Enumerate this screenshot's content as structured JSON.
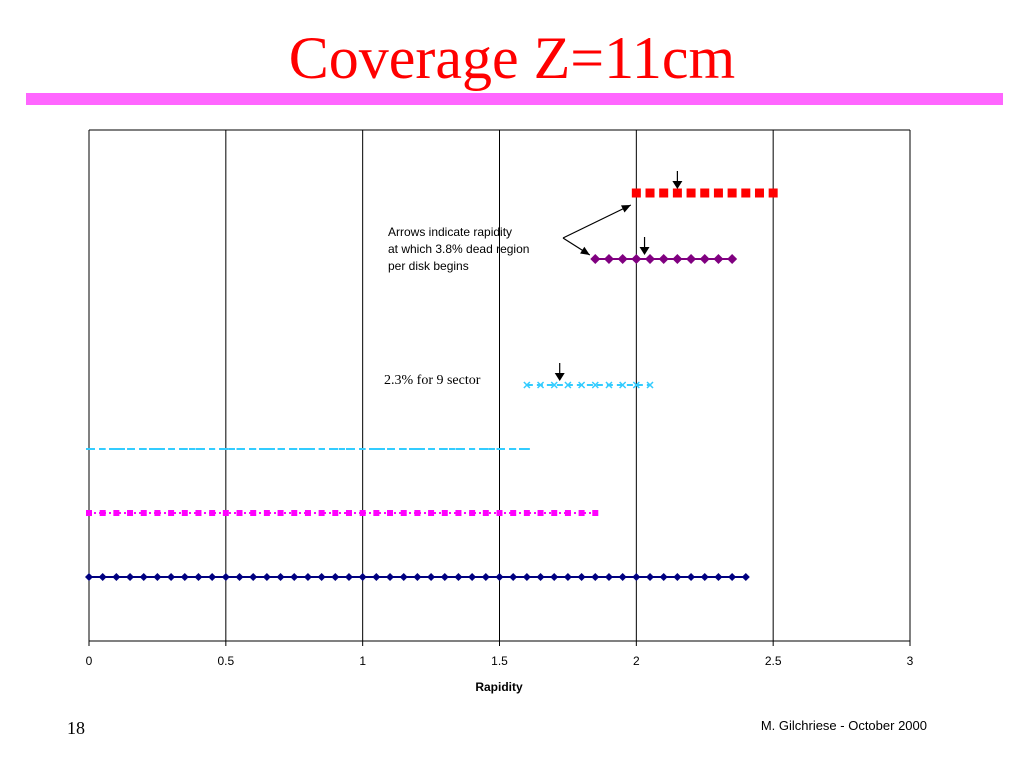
{
  "slide": {
    "title": "Coverage Z=11cm",
    "page_number": "18",
    "footer": "M. Gilchriese - October 2000",
    "colors": {
      "title": "#ff0000",
      "rule": "#ff66ff"
    }
  },
  "chart_data": {
    "type": "scatter",
    "title": "",
    "xlabel": "Rapidity",
    "ylabel": "",
    "xlim": [
      0,
      3
    ],
    "x_ticks": [
      "0",
      "0.5",
      "1",
      "1.5",
      "2",
      "2.5",
      "3"
    ],
    "grid": "vertical",
    "legend": "none",
    "series": [
      {
        "x_start": 2.0,
        "x_end": 2.5,
        "step": 0.05,
        "level": 6,
        "marker": "square",
        "color": "#ff0000",
        "line": "none"
      },
      {
        "x_start": 1.85,
        "x_end": 2.35,
        "step": 0.05,
        "level": 5,
        "marker": "diamond",
        "color": "#800080",
        "line": "solid"
      },
      {
        "x_start": 1.6,
        "x_end": 2.05,
        "step": 0.05,
        "level": 4,
        "marker": "x",
        "color": "#33ccff",
        "line": "dashed"
      },
      {
        "x_start": 0.0,
        "x_end": 1.6,
        "step": 0.05,
        "level": 3,
        "marker": "dash",
        "color": "#33ccff",
        "line": "dashed"
      },
      {
        "x_start": 0.0,
        "x_end": 1.85,
        "step": 0.05,
        "level": 2,
        "marker": "square",
        "color": "#ff00ff",
        "line": "dotted"
      },
      {
        "x_start": 0.0,
        "x_end": 2.4,
        "step": 0.05,
        "level": 1,
        "marker": "diamond",
        "color": "#000080",
        "line": "solid"
      }
    ],
    "annotations": [
      {
        "text_lines": [
          "Arrows indicate rapidity",
          "at which 3.8% dead region",
          "per disk begins"
        ]
      },
      {
        "text": "2.3% for 9 sector"
      }
    ],
    "arrow_markers": [
      {
        "x": 2.15,
        "level": 6
      },
      {
        "x": 2.03,
        "level": 5
      },
      {
        "x": 1.72,
        "level": 4
      }
    ]
  }
}
